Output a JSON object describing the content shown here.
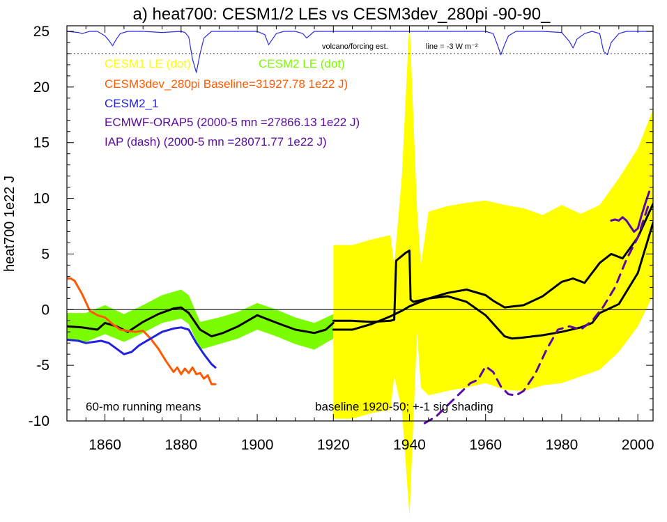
{
  "colors": {
    "cesm1": "#ffff00",
    "cesm2": "#7cfc00",
    "cesm3": "#ff5a00",
    "cesm2_1": "#2222dd",
    "ecmwf": "#5a0aa0",
    "iap": "#5a0aa0",
    "volcano": "#2a2ae0",
    "black": "#000000"
  },
  "chart_data": {
    "type": "line",
    "title": "a) heat700: CESM1/2 LEs vs CESM3dev_280pi -90-90_",
    "xlabel": "",
    "ylabel": "heat700 1e22 J",
    "xlim": [
      1850,
      2004
    ],
    "ylim": [
      -10,
      25.5
    ],
    "x_ticks": [
      1860,
      1880,
      1900,
      1920,
      1940,
      1960,
      1980,
      2000
    ],
    "y_ticks": [
      -10,
      -5,
      0,
      5,
      10,
      15,
      20,
      25
    ],
    "legend": [
      {
        "label": "CESM1 LE (dot)",
        "color": "#ffff00"
      },
      {
        "label": "CESM2 LE (dot)",
        "color": "#7cfc00"
      },
      {
        "label": "CESM3dev_280pi Baseline=31927.78 1e22 J)",
        "color": "#ff5a00"
      },
      {
        "label": "CESM2_1",
        "color": "#2222dd"
      },
      {
        "label": "ECMWF-ORAP5 (2000-5 mn =27866.13 1e22 J)",
        "color": "#5a0aa0"
      },
      {
        "label": "IAP (dash) (2000-5 mn =28071.77 1e22 J)",
        "color": "#5a0aa0"
      }
    ],
    "annotations": {
      "running_means": "60-mo running means",
      "baseline": "baseline 1920-50; +-1 sig shading",
      "volcano": "volcano/forcing est.",
      "threshold": "line = -3 W m⁻²"
    },
    "volcano_line_y": 23,
    "series": [
      {
        "name": "CESM2 LE (dot)",
        "kind": "band",
        "x": [
          1850,
          1855,
          1860,
          1865,
          1870,
          1875,
          1880,
          1882,
          1885,
          1890,
          1895,
          1900,
          1905,
          1910,
          1915,
          1920
        ],
        "upper": [
          -0.3,
          -0.3,
          0.4,
          -0.4,
          0.4,
          1.3,
          1.8,
          1.3,
          -1.1,
          -0.7,
          -0.2,
          0.6,
          0.0,
          -0.7,
          -1.2,
          -0.4
        ],
        "lower": [
          -2.7,
          -2.9,
          -2.2,
          -2.9,
          -2.1,
          -1.2,
          -0.8,
          -1.3,
          -3.6,
          -3.1,
          -2.6,
          -1.8,
          -2.4,
          -3.1,
          -3.6,
          -2.6
        ]
      },
      {
        "name": "CESM1 LE (dot)",
        "kind": "band",
        "x": [
          1920,
          1925,
          1930,
          1935,
          1936,
          1938,
          1940,
          1942,
          1943,
          1945,
          1950,
          1955,
          1960,
          1965,
          1970,
          1975,
          1980,
          1985,
          1990,
          1995,
          2000,
          2004
        ],
        "upper": [
          5.8,
          5.8,
          6.3,
          6.7,
          4.0,
          12.0,
          26.0,
          9.0,
          4.0,
          8.8,
          9.3,
          9.6,
          9.8,
          9.4,
          9.1,
          8.5,
          9.4,
          8.6,
          9.4,
          11.8,
          14.5,
          18.0
        ],
        "lower": [
          -9.8,
          -9.8,
          -9.3,
          -9.0,
          -6.0,
          -9.0,
          -18.5,
          -2.0,
          -7.0,
          -7.7,
          -7.3,
          -7.0,
          -6.6,
          -7.2,
          -7.3,
          -6.8,
          -6.6,
          -6.0,
          -5.4,
          -3.8,
          -1.5,
          1.3
        ]
      },
      {
        "name": "CESM2 LE mean",
        "kind": "line",
        "x": [
          1850,
          1854,
          1858,
          1860,
          1863,
          1866,
          1870,
          1874,
          1878,
          1880,
          1882,
          1885,
          1888,
          1891,
          1895,
          1900,
          1903,
          1906,
          1910,
          1915,
          1918,
          1920
        ],
        "values": [
          -1.5,
          -1.6,
          -1.8,
          -1.2,
          -1.5,
          -2.0,
          -1.1,
          -0.4,
          0.1,
          0.2,
          -0.3,
          -1.8,
          -2.4,
          -2.1,
          -1.5,
          -0.5,
          -0.9,
          -1.3,
          -1.8,
          -2.1,
          -1.8,
          -1.2
        ]
      },
      {
        "name": "CESM1 LE mean A",
        "kind": "line",
        "x": [
          1920,
          1925,
          1930,
          1935,
          1938,
          1940,
          1945,
          1950,
          1955,
          1960,
          1962,
          1965,
          1970,
          1975,
          1980,
          1983,
          1986,
          1990,
          1993,
          1996,
          2000,
          2004
        ],
        "values": [
          -1.8,
          -1.8,
          -1.3,
          -0.6,
          -0.1,
          0.3,
          1.0,
          1.5,
          1.8,
          1.3,
          0.8,
          0.2,
          0.4,
          1.2,
          2.5,
          2.8,
          2.4,
          4.2,
          5.0,
          4.6,
          6.5,
          9.5
        ]
      },
      {
        "name": "CESM1 LE mean B",
        "kind": "line",
        "x": [
          1920,
          1925,
          1930,
          1935,
          1936,
          1936.5,
          1939,
          1940,
          1940.3,
          1941,
          1945,
          1950,
          1955,
          1960,
          1965,
          1967,
          1970,
          1975,
          1980,
          1985,
          1988,
          1990,
          1995,
          2000,
          2004
        ],
        "values": [
          -1.0,
          -1.0,
          -1.1,
          -1.0,
          -0.9,
          4.4,
          5.1,
          5.3,
          0.9,
          0.7,
          1.0,
          1.2,
          0.7,
          -0.5,
          -2.4,
          -2.6,
          -2.5,
          -2.3,
          -2.0,
          -1.6,
          -1.2,
          -0.3,
          0.5,
          3.3,
          7.8
        ]
      },
      {
        "name": "CESM3dev_280pi",
        "kind": "line",
        "x": [
          1850,
          1851,
          1852,
          1854,
          1856,
          1858,
          1860,
          1862,
          1864,
          1866,
          1868,
          1870,
          1872,
          1874,
          1876,
          1878,
          1879,
          1880,
          1881,
          1882,
          1883,
          1884,
          1885,
          1886,
          1887,
          1888,
          1889
        ],
        "values": [
          2.8,
          2.8,
          2.6,
          1.4,
          -0.1,
          -0.5,
          -0.7,
          -1.3,
          -1.8,
          -1.9,
          -2.0,
          -1.9,
          -2.6,
          -3.5,
          -4.6,
          -5.6,
          -5.2,
          -5.8,
          -5.3,
          -5.7,
          -5.2,
          -5.8,
          -5.7,
          -6.2,
          -5.9,
          -6.7,
          -6.7
        ]
      },
      {
        "name": "CESM2_1",
        "kind": "line",
        "x": [
          1850,
          1853,
          1855,
          1857,
          1859,
          1861,
          1863,
          1865,
          1867,
          1869,
          1872,
          1875,
          1878,
          1880,
          1882,
          1884,
          1886,
          1888,
          1889
        ],
        "values": [
          -2.7,
          -2.8,
          -3.0,
          -2.9,
          -2.8,
          -3.0,
          -3.5,
          -4.0,
          -3.8,
          -3.2,
          -2.6,
          -2.0,
          -1.7,
          -1.6,
          -1.8,
          -3.0,
          -4.0,
          -4.9,
          -5.2
        ]
      },
      {
        "name": "ECMWF-ORAP5",
        "kind": "line",
        "x": [
          1993,
          1994,
          1995,
          1996,
          1997,
          1998,
          1999,
          2000,
          2001,
          2002,
          2003
        ],
        "values": [
          8.0,
          8.1,
          8.0,
          8.3,
          8.0,
          7.5,
          7.0,
          7.3,
          8.5,
          9.6,
          10.6
        ]
      },
      {
        "name": "IAP (dash)",
        "kind": "dash",
        "x": [
          1944,
          1947,
          1950,
          1953,
          1956,
          1958,
          1960,
          1962,
          1964,
          1966,
          1968,
          1970,
          1973,
          1976,
          1979,
          1982,
          1985,
          1988,
          1991,
          1994,
          1997,
          2000,
          2003
        ],
        "values": [
          -10.2,
          -9.6,
          -8.6,
          -7.6,
          -6.6,
          -6.3,
          -5.1,
          -5.6,
          -6.9,
          -7.6,
          -7.7,
          -7.3,
          -5.8,
          -3.6,
          -1.8,
          -1.5,
          -1.8,
          -1.0,
          0.3,
          2.0,
          4.5,
          6.5,
          9.6
        ]
      },
      {
        "name": "volcano/forcing est.",
        "kind": "volcano",
        "x": [
          1850,
          1853,
          1854,
          1855,
          1856,
          1858,
          1860,
          1861,
          1862,
          1863,
          1864,
          1866,
          1870,
          1875,
          1880,
          1881,
          1882,
          1883,
          1884,
          1885,
          1886,
          1888,
          1892,
          1900,
          1902,
          1903,
          1904,
          1905,
          1907,
          1910,
          1912,
          1913,
          1915,
          1920,
          1925,
          1930,
          1935,
          1940,
          1945,
          1950,
          1955,
          1960,
          1962,
          1963,
          1964,
          1965,
          1966,
          1968,
          1970,
          1975,
          1980,
          1982,
          1983,
          1984,
          1986,
          1988,
          1990,
          1991,
          1992,
          1993,
          1995,
          1997,
          2000,
          2004
        ],
        "values": [
          25,
          24.9,
          24.8,
          24.9,
          25,
          25,
          24.6,
          24.2,
          23.7,
          24.3,
          24.8,
          25,
          25,
          24.9,
          25,
          24.9,
          24.5,
          22.5,
          21.3,
          23.0,
          24.4,
          25,
          25,
          25,
          24.7,
          23.8,
          24.3,
          24.8,
          25,
          25,
          24.8,
          24.4,
          25,
          25,
          25,
          25,
          25,
          25,
          25,
          25,
          25,
          25,
          24.8,
          23.9,
          22.9,
          23.8,
          24.6,
          25,
          25,
          25,
          24.9,
          24.1,
          23.5,
          24.3,
          24.8,
          25,
          24.8,
          23.2,
          22.9,
          24.0,
          24.8,
          25,
          25,
          25
        ]
      }
    ]
  }
}
